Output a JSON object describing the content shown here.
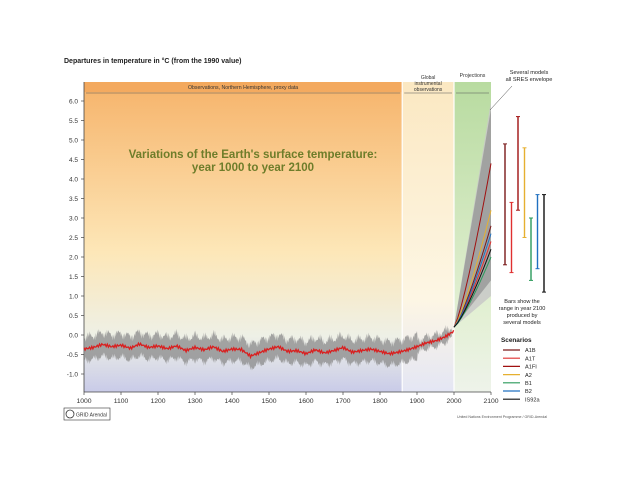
{
  "chart_data": {
    "type": "line",
    "header": "Departures in temperature in °C (from the 1990 value)",
    "title_line1": "Variations of the Earth's surface temperature:",
    "title_line2": "year 1000 to year 2100",
    "x_ticks": [
      1000,
      1100,
      1200,
      1300,
      1400,
      1500,
      1600,
      1700,
      1800,
      1900,
      2000,
      2100
    ],
    "y_ticks": [
      -1.0,
      -0.5,
      0.0,
      0.5,
      1.0,
      1.5,
      2.0,
      2.5,
      3.0,
      3.5,
      4.0,
      4.5,
      5.0,
      5.5,
      6.0
    ],
    "y_tick_labels": [
      "-1.0",
      "-0.5",
      "0.0",
      "0.5",
      "1.0",
      "1.5",
      "2.0",
      "2.5",
      "3.0",
      "3.5",
      "4.0",
      "4.5",
      "5.0",
      "5.5",
      "6.0"
    ],
    "xlim": [
      1000,
      2100
    ],
    "ylim": [
      -1.3,
      6.6
    ],
    "zones": {
      "observations_label": "Observations, Northern Hemisphere, proxy data",
      "observations_range": [
        1000,
        1860
      ],
      "instrumental_label": [
        "Global",
        "instrumental",
        "observations"
      ],
      "instrumental_range": [
        1860,
        2000
      ],
      "projections_label": "Projections",
      "projections_range": [
        2000,
        2100
      ]
    },
    "proxy_series": {
      "x": [
        1000,
        1025,
        1050,
        1075,
        1100,
        1125,
        1150,
        1175,
        1200,
        1225,
        1250,
        1275,
        1300,
        1325,
        1350,
        1375,
        1400,
        1425,
        1450,
        1475,
        1500,
        1525,
        1550,
        1575,
        1600,
        1625,
        1650,
        1675,
        1700,
        1725,
        1750,
        1775,
        1800,
        1825,
        1850,
        1875,
        1900,
        1925,
        1950,
        1975,
        2000
      ],
      "y": [
        -0.36,
        -0.32,
        -0.24,
        -0.3,
        -0.26,
        -0.34,
        -0.23,
        -0.32,
        -0.28,
        -0.35,
        -0.28,
        -0.4,
        -0.32,
        -0.38,
        -0.3,
        -0.42,
        -0.36,
        -0.37,
        -0.54,
        -0.45,
        -0.36,
        -0.3,
        -0.42,
        -0.4,
        -0.48,
        -0.38,
        -0.46,
        -0.4,
        -0.32,
        -0.44,
        -0.4,
        -0.36,
        -0.42,
        -0.48,
        -0.44,
        -0.38,
        -0.3,
        -0.2,
        -0.15,
        -0.05,
        0.1
      ],
      "band": 0.3
    },
    "scenarios": {
      "title": "Scenarios",
      "series": [
        {
          "name": "A1B",
          "color": "#7a1a1a",
          "end": 2.8
        },
        {
          "name": "A1T",
          "color": "#e03030",
          "end": 2.4
        },
        {
          "name": "A1FI",
          "color": "#a01010",
          "end": 4.4
        },
        {
          "name": "A2",
          "color": "#e6b030",
          "end": 3.2
        },
        {
          "name": "B1",
          "color": "#2a9a5a",
          "end": 2.0
        },
        {
          "name": "B2",
          "color": "#2070c0",
          "end": 2.6
        },
        {
          "name": "IS92a",
          "color": "#111111",
          "end": 2.2
        }
      ]
    },
    "envelope": {
      "all_sres_end": [
        1.4,
        5.8
      ],
      "several_models_end": [
        1.0,
        6.0
      ],
      "label": [
        "Several models",
        "all SRES envelope"
      ]
    },
    "range_bars": [
      {
        "color": "#7a1a1a",
        "low": 1.8,
        "high": 4.9
      },
      {
        "color": "#e03030",
        "low": 1.6,
        "high": 3.4
      },
      {
        "color": "#a01010",
        "low": 3.2,
        "high": 5.6
      },
      {
        "color": "#e6b030",
        "low": 2.5,
        "high": 4.8
      },
      {
        "color": "#2a9a5a",
        "low": 1.4,
        "high": 3.0
      },
      {
        "color": "#2070c0",
        "low": 1.7,
        "high": 3.6
      },
      {
        "color": "#111111",
        "low": 1.1,
        "high": 3.6
      }
    ],
    "bars_note": [
      "Bars show the",
      "range in year 2100",
      "produced by",
      "several models"
    ],
    "footer_logo": "GRID Arendal",
    "footer_credit": "United Nations Environment Programme / GRID-Arendal"
  }
}
